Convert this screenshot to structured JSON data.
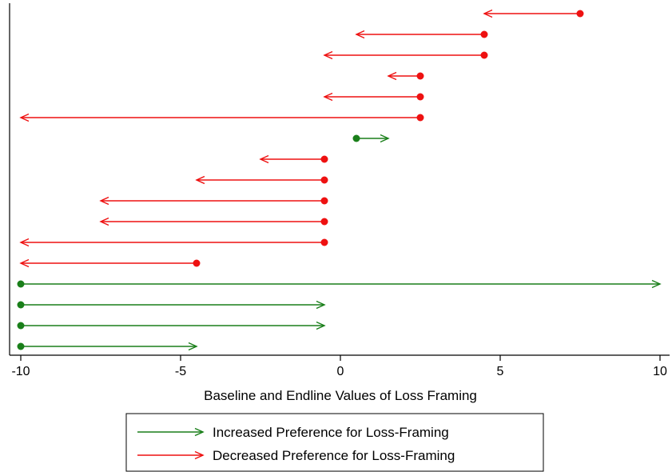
{
  "chart_data": {
    "type": "dumbbell-arrow",
    "xlabel": "Baseline and Endline Values of Loss Framing",
    "ylabel": "",
    "xlim": [
      -10,
      10
    ],
    "x_ticks": [
      -10,
      -5,
      0,
      5,
      10
    ],
    "x_tick_labels": [
      "-10",
      "-5",
      "0",
      "5",
      "10"
    ],
    "grid": false,
    "legend_position": "bottom",
    "series": [
      {
        "name": "Increased Preference for Loss-Framing",
        "color": "#1a7f1a"
      },
      {
        "name": "Decreased Preference for Loss-Framing",
        "color": "#ee1111"
      }
    ],
    "rows": [
      {
        "baseline": 7.5,
        "endline": 4.5,
        "series": 1
      },
      {
        "baseline": 4.5,
        "endline": 0.5,
        "series": 1
      },
      {
        "baseline": 4.5,
        "endline": -0.5,
        "series": 1
      },
      {
        "baseline": 2.5,
        "endline": 1.5,
        "series": 1
      },
      {
        "baseline": 2.5,
        "endline": -0.5,
        "series": 1
      },
      {
        "baseline": 2.5,
        "endline": -10,
        "series": 1
      },
      {
        "baseline": 0.5,
        "endline": 1.5,
        "series": 0
      },
      {
        "baseline": -0.5,
        "endline": -2.5,
        "series": 1
      },
      {
        "baseline": -0.5,
        "endline": -4.5,
        "series": 1
      },
      {
        "baseline": -0.5,
        "endline": -7.5,
        "series": 1
      },
      {
        "baseline": -0.5,
        "endline": -7.5,
        "series": 1
      },
      {
        "baseline": -0.5,
        "endline": -10,
        "series": 1
      },
      {
        "baseline": -4.5,
        "endline": -10,
        "series": 1
      },
      {
        "baseline": -10,
        "endline": 10,
        "series": 0
      },
      {
        "baseline": -10,
        "endline": -0.5,
        "series": 0
      },
      {
        "baseline": -10,
        "endline": -0.5,
        "series": 0
      },
      {
        "baseline": -10,
        "endline": -4.5,
        "series": 0
      }
    ]
  }
}
